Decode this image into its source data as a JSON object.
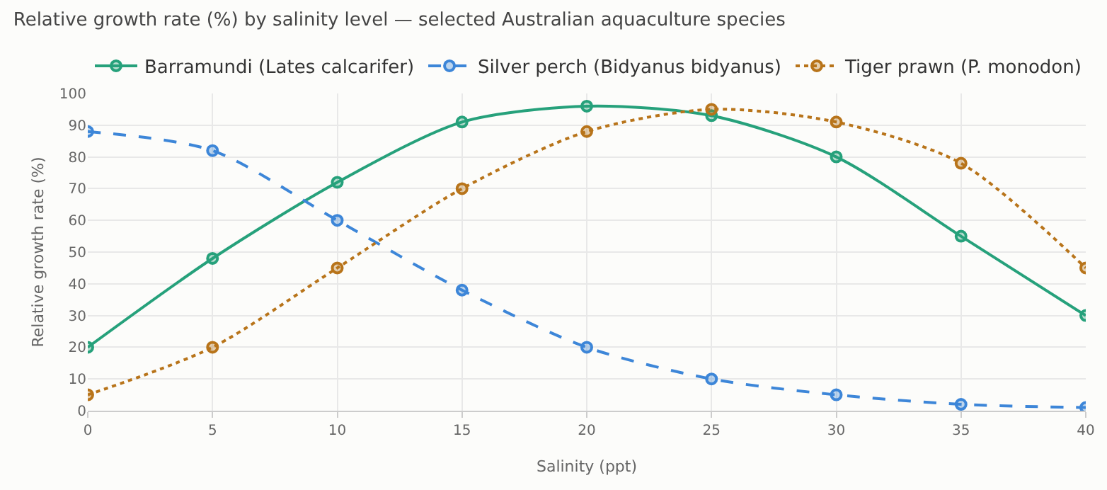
{
  "chart_data": {
    "type": "line",
    "title": "Relative growth rate (%) by salinity level — selected Australian aquaculture species",
    "xlabel": "Salinity (ppt)",
    "ylabel": "Relative growth rate (%)",
    "x": [
      0,
      5,
      10,
      15,
      20,
      25,
      30,
      35,
      40
    ],
    "series": [
      {
        "name": "Barramundi (Lates calcarifer)",
        "color": "#26a17b",
        "line_style": "solid",
        "values": [
          20,
          48,
          72,
          91,
          96,
          93,
          80,
          55,
          30
        ]
      },
      {
        "name": "Silver perch (Bidyanus bidyanus)",
        "color": "#3d86d8",
        "line_style": "dashed",
        "values": [
          88,
          82,
          60,
          38,
          20,
          10,
          5,
          2,
          1
        ]
      },
      {
        "name": "Tiger prawn (P. monodon)",
        "color": "#b8741a",
        "line_style": "dotted",
        "values": [
          5,
          20,
          45,
          70,
          88,
          95,
          91,
          78,
          45
        ]
      }
    ],
    "xlim": [
      0,
      40
    ],
    "xticks": [
      0,
      5,
      10,
      15,
      20,
      25,
      30,
      35,
      40
    ],
    "ylim": [
      0,
      100
    ],
    "yticks": [
      0,
      10,
      20,
      30,
      40,
      50,
      60,
      70,
      80,
      90,
      100
    ],
    "grid": true,
    "legend": "top left",
    "marker": "circle"
  }
}
